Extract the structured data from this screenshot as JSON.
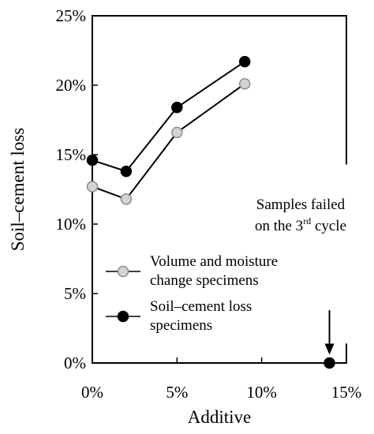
{
  "chart_data": {
    "type": "line",
    "xlabel": "Additive",
    "ylabel": "Soil–cement loss",
    "xlim": [
      0,
      15
    ],
    "ylim": [
      0,
      25
    ],
    "x_ticks": [
      0,
      5,
      10,
      15
    ],
    "y_ticks": [
      0,
      5,
      10,
      15,
      20,
      25
    ],
    "x_tick_labels": [
      "0%",
      "5%",
      "10%",
      "15%"
    ],
    "y_tick_labels": [
      "0%",
      "5%",
      "10%",
      "15%",
      "20%",
      "25%"
    ],
    "grid": false,
    "legend_position": "lower-left",
    "series": [
      {
        "name": "Volume and moisture change specimens",
        "legend_lines": [
          "Volume and moisture",
          "change specimens"
        ],
        "marker_fill": "#d3d3d3",
        "marker_edge": "#8c8c8c",
        "x": [
          0,
          2,
          5,
          9
        ],
        "y": [
          12.7,
          11.8,
          16.6,
          20.1
        ]
      },
      {
        "name": "Soil–cement loss specimens",
        "legend_lines": [
          "Soil–cement loss",
          "specimens"
        ],
        "marker_fill": "#000000",
        "marker_edge": "#000000",
        "x": [
          0,
          2,
          5,
          9
        ],
        "y": [
          14.6,
          13.8,
          18.4,
          21.7
        ]
      }
    ],
    "extra_point": {
      "x": 14,
      "y": 0,
      "color": "#000000"
    },
    "annotation": {
      "line1": "Samples failed",
      "line2_pre": "on the 3",
      "line2_sup": "rd",
      "line2_post": " cycle",
      "arrow_from_y": 3.8,
      "arrow_to_y": 0.6,
      "arrow_x": 14
    },
    "marker_line_ys": [
      14.4,
      1.4
    ]
  }
}
